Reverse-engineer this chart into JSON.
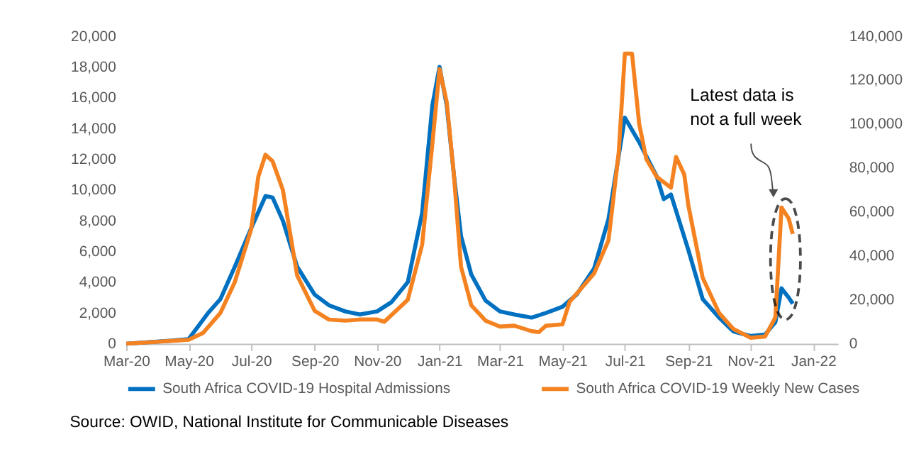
{
  "chart_data": {
    "type": "line",
    "legend": "bottom",
    "line_style": "solid",
    "marker": "none",
    "annotations": [
      "Latest data is\nnot a full week",
      "Source: OWID, National Institute for Communicable Diseases"
    ],
    "xlim": [
      "2020-03-01",
      "2022-01-25"
    ],
    "xticks": [
      {
        "value": "2020-03-01",
        "label": "Mar-20"
      },
      {
        "value": "2020-05-01",
        "label": "May-20"
      },
      {
        "value": "2020-07-01",
        "label": "Jul-20"
      },
      {
        "value": "2020-09-01",
        "label": "Sep-20"
      },
      {
        "value": "2020-11-01",
        "label": "Nov-20"
      },
      {
        "value": "2021-01-01",
        "label": "Jan-21"
      },
      {
        "value": "2021-03-01",
        "label": "Mar-21"
      },
      {
        "value": "2021-05-01",
        "label": "May-21"
      },
      {
        "value": "2021-07-01",
        "label": "Jul-21"
      },
      {
        "value": "2021-09-01",
        "label": "Sep-21"
      },
      {
        "value": "2021-11-01",
        "label": "Nov-21"
      },
      {
        "value": "2022-01-01",
        "label": "Jan-22"
      }
    ],
    "ylim": [
      0,
      20000
    ],
    "yticks": [
      {
        "value": 0,
        "label": "0"
      },
      {
        "value": 2000,
        "label": "2,000"
      },
      {
        "value": 4000,
        "label": "4,000"
      },
      {
        "value": 6000,
        "label": "6,000"
      },
      {
        "value": 8000,
        "label": "8,000"
      },
      {
        "value": 10000,
        "label": "10,000"
      },
      {
        "value": 12000,
        "label": "12,000"
      },
      {
        "value": 14000,
        "label": "14,000"
      },
      {
        "value": 16000,
        "label": "16,000"
      },
      {
        "value": 18000,
        "label": "18,000"
      },
      {
        "value": 20000,
        "label": "20,000"
      }
    ],
    "y2lim": [
      0,
      140000
    ],
    "y2ticks": [
      {
        "value": 0,
        "label": "0"
      },
      {
        "value": 20000,
        "label": "20,000"
      },
      {
        "value": 40000,
        "label": "40,000"
      },
      {
        "value": 60000,
        "label": "60,000"
      },
      {
        "value": 80000,
        "label": "80,000"
      },
      {
        "value": 100000,
        "label": "100,000"
      },
      {
        "value": 120000,
        "label": "120,000"
      },
      {
        "value": 140000,
        "label": "140,000"
      }
    ],
    "series": [
      {
        "name": "South Africa COVID-19 Hospital Admissions",
        "color": "#0070c0",
        "x": [
          "2020-03-01",
          "2020-04-15",
          "2020-05-01",
          "2020-05-20",
          "2020-06-01",
          "2020-06-15",
          "2020-07-01",
          "2020-07-15",
          "2020-07-22",
          "2020-08-01",
          "2020-08-15",
          "2020-09-01",
          "2020-09-15",
          "2020-10-01",
          "2020-10-15",
          "2020-11-01",
          "2020-11-15",
          "2020-12-01",
          "2020-12-15",
          "2020-12-25",
          "2021-01-01",
          "2021-01-08",
          "2021-01-15",
          "2021-01-22",
          "2021-02-01",
          "2021-02-15",
          "2021-03-01",
          "2021-03-15",
          "2021-04-01",
          "2021-04-15",
          "2021-05-01",
          "2021-05-15",
          "2021-06-01",
          "2021-06-15",
          "2021-07-01",
          "2021-07-15",
          "2021-08-01",
          "2021-08-08",
          "2021-08-15",
          "2021-09-01",
          "2021-09-15",
          "2021-10-01",
          "2021-10-15",
          "2021-11-01",
          "2021-11-15",
          "2021-11-25",
          "2021-12-01",
          "2021-12-08",
          "2021-12-12"
        ],
        "values": [
          0,
          200,
          300,
          2000,
          2900,
          5000,
          7500,
          9600,
          9500,
          8000,
          5000,
          3200,
          2500,
          2100,
          1900,
          2100,
          2700,
          4000,
          8500,
          15500,
          18000,
          15500,
          11000,
          7000,
          4500,
          2800,
          2100,
          1900,
          1700,
          2000,
          2400,
          3200,
          4900,
          8100,
          14700,
          13100,
          10900,
          9400,
          9700,
          6100,
          2900,
          1700,
          800,
          500,
          600,
          1400,
          3600,
          3000,
          2600
        ]
      },
      {
        "name": "South Africa COVID-19 Weekly New Cases",
        "color": "#f58220",
        "axis": "y2",
        "x": [
          "2020-03-01",
          "2020-05-01",
          "2020-05-15",
          "2020-06-01",
          "2020-06-15",
          "2020-07-01",
          "2020-07-08",
          "2020-07-15",
          "2020-07-22",
          "2020-08-01",
          "2020-08-15",
          "2020-09-01",
          "2020-09-15",
          "2020-10-01",
          "2020-10-15",
          "2020-11-01",
          "2020-11-08",
          "2020-12-01",
          "2020-12-15",
          "2020-12-25",
          "2021-01-01",
          "2021-01-08",
          "2021-01-15",
          "2021-01-22",
          "2021-02-01",
          "2021-02-15",
          "2021-03-01",
          "2021-03-15",
          "2021-04-01",
          "2021-04-08",
          "2021-04-15",
          "2021-05-01",
          "2021-05-08",
          "2021-06-01",
          "2021-06-15",
          "2021-06-25",
          "2021-07-01",
          "2021-07-08",
          "2021-07-15",
          "2021-07-22",
          "2021-08-01",
          "2021-08-15",
          "2021-08-20",
          "2021-08-28",
          "2021-09-01",
          "2021-09-15",
          "2021-10-01",
          "2021-10-15",
          "2021-11-01",
          "2021-11-15",
          "2021-11-25",
          "2021-12-01",
          "2021-12-08",
          "2021-12-12"
        ],
        "values": [
          0,
          1800,
          4900,
          14000,
          28000,
          52000,
          76000,
          86000,
          83000,
          70000,
          31000,
          15000,
          11000,
          10500,
          11000,
          11000,
          10000,
          20000,
          45000,
          91000,
          125000,
          110000,
          77000,
          35000,
          17500,
          10500,
          7800,
          8200,
          5700,
          5300,
          8200,
          8800,
          19000,
          32000,
          47000,
          87000,
          132000,
          132000,
          100000,
          84000,
          76000,
          71000,
          85000,
          77000,
          63000,
          30000,
          14000,
          6700,
          2700,
          3300,
          12000,
          62000,
          57000,
          50000
        ]
      }
    ]
  }
}
